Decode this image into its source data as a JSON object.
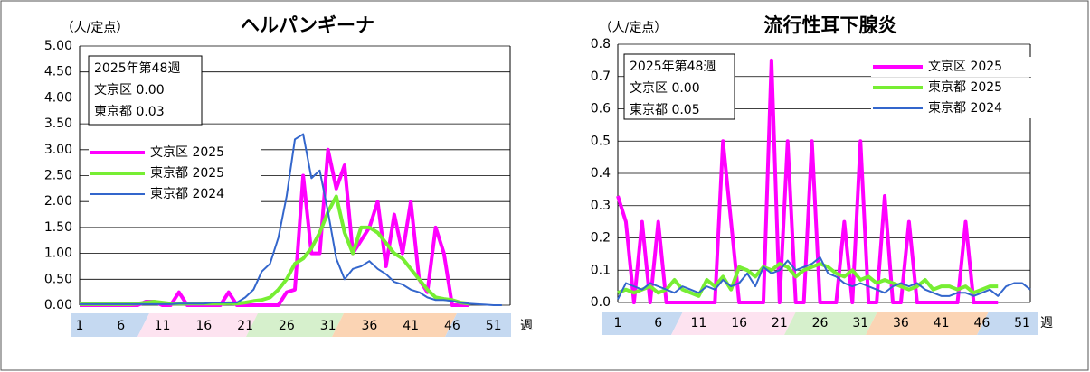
{
  "chart_data": [
    {
      "type": "line",
      "title": "ヘルパンギーナ",
      "y_label": "（人/定点）",
      "x_label": "週",
      "annotations": [
        "2025年第48週",
        "文京区  0.00",
        "東京都  0.03"
      ],
      "legend": "center-left",
      "grid": true,
      "x": [
        1,
        2,
        3,
        4,
        5,
        6,
        7,
        8,
        9,
        10,
        11,
        12,
        13,
        14,
        15,
        16,
        17,
        18,
        19,
        20,
        21,
        22,
        23,
        24,
        25,
        26,
        27,
        28,
        29,
        30,
        31,
        32,
        33,
        34,
        35,
        36,
        37,
        38,
        39,
        40,
        41,
        42,
        43,
        44,
        45,
        46,
        47,
        48,
        49,
        50,
        51,
        52
      ],
      "xlim": [
        1,
        53
      ],
      "xticks": [
        1,
        6,
        11,
        16,
        21,
        26,
        31,
        36,
        41,
        46,
        51
      ],
      "ylim": [
        0,
        5
      ],
      "yticks": [
        {
          "value": 0,
          "label": "0.00"
        },
        {
          "value": 0.5,
          "label": "0.50"
        },
        {
          "value": 1,
          "label": "1.00"
        },
        {
          "value": 1.5,
          "label": "1.50"
        },
        {
          "value": 2,
          "label": "2.00"
        },
        {
          "value": 2.5,
          "label": "2.50"
        },
        {
          "value": 3,
          "label": "3.00"
        },
        {
          "value": 3.5,
          "label": "3.50"
        },
        {
          "value": 4,
          "label": "4.00"
        },
        {
          "value": 4.5,
          "label": "4.50"
        },
        {
          "value": 5,
          "label": "5.00"
        }
      ],
      "series": [
        {
          "name": "文京区 2025",
          "color": "#ff00ff",
          "values": [
            0,
            0,
            0,
            0,
            0,
            0,
            0,
            0,
            0.07,
            0.07,
            0,
            0,
            0.25,
            0,
            0,
            0,
            0,
            0,
            0.25,
            0,
            0,
            0,
            0,
            0,
            0,
            0.25,
            0.3,
            2.5,
            1.0,
            1.0,
            3.0,
            2.25,
            2.7,
            1.0,
            1.25,
            1.5,
            2.0,
            0.75,
            1.75,
            1.0,
            2.0,
            0.5,
            0.25,
            1.5,
            1.0,
            0,
            0,
            0,
            null,
            null,
            null,
            null
          ]
        },
        {
          "name": "東京都 2025",
          "color": "#77ee33",
          "values": [
            0.02,
            0.02,
            0.02,
            0.02,
            0.02,
            0.02,
            0.02,
            0.03,
            0.05,
            0.07,
            0.05,
            0.03,
            0.03,
            0.03,
            0.03,
            0.03,
            0.03,
            0.03,
            0.04,
            0.03,
            0.05,
            0.08,
            0.1,
            0.15,
            0.3,
            0.5,
            0.8,
            0.9,
            1.1,
            1.4,
            1.8,
            2.1,
            1.4,
            1.0,
            1.5,
            1.5,
            1.4,
            1.2,
            1.0,
            0.9,
            0.7,
            0.5,
            0.3,
            0.15,
            0.12,
            0.1,
            0.05,
            0.03,
            null,
            null,
            null,
            null
          ]
        },
        {
          "name": "東京都 2024",
          "color": "#3366cc",
          "values": [
            0.02,
            0.02,
            0.02,
            0.02,
            0.02,
            0.02,
            0.02,
            0.02,
            0.02,
            0.02,
            0.02,
            0.02,
            0.03,
            0.03,
            0.03,
            0.03,
            0.05,
            0.05,
            0.05,
            0.05,
            0.15,
            0.3,
            0.65,
            0.8,
            1.3,
            2.1,
            3.2,
            3.3,
            2.45,
            2.6,
            1.8,
            0.9,
            0.5,
            0.7,
            0.75,
            0.85,
            0.7,
            0.6,
            0.45,
            0.4,
            0.3,
            0.25,
            0.15,
            0.1,
            0.1,
            0.08,
            0.05,
            0.03,
            0.02,
            0.01,
            0,
            0
          ]
        }
      ]
    },
    {
      "type": "line",
      "title": "流行性耳下腺炎",
      "y_label": "（人/定点）",
      "x_label": "週",
      "annotations": [
        "2025年第48週",
        "文京区  0.00",
        "東京都  0.05"
      ],
      "legend": "top-right",
      "grid": true,
      "x": [
        1,
        2,
        3,
        4,
        5,
        6,
        7,
        8,
        9,
        10,
        11,
        12,
        13,
        14,
        15,
        16,
        17,
        18,
        19,
        20,
        21,
        22,
        23,
        24,
        25,
        26,
        27,
        28,
        29,
        30,
        31,
        32,
        33,
        34,
        35,
        36,
        37,
        38,
        39,
        40,
        41,
        42,
        43,
        44,
        45,
        46,
        47,
        48,
        49,
        50,
        51,
        52
      ],
      "xlim": [
        1,
        52
      ],
      "xticks": [
        1,
        6,
        11,
        16,
        21,
        26,
        31,
        36,
        41,
        46,
        51
      ],
      "ylim": [
        0,
        0.8
      ],
      "yticks": [
        {
          "value": 0,
          "label": "0.0"
        },
        0.1,
        0.2,
        0.3,
        0.4,
        0.5,
        0.6,
        0.7,
        0.8
      ],
      "series": [
        {
          "name": "文京区 2025",
          "color": "#ff00ff",
          "values": [
            0.33,
            0.25,
            0,
            0.25,
            0,
            0.25,
            0,
            0,
            0,
            0,
            0,
            0,
            0,
            0.5,
            0.25,
            0,
            0,
            0,
            0,
            0.75,
            0,
            0.5,
            0,
            0,
            0.5,
            0,
            0,
            0,
            0.25,
            0,
            0.5,
            0,
            0,
            0.33,
            0,
            0,
            0.25,
            0,
            0,
            0,
            0,
            0,
            0,
            0.25,
            0,
            0,
            0,
            0,
            null,
            null,
            null,
            null
          ]
        },
        {
          "name": "東京都 2025",
          "color": "#77ee33",
          "values": [
            0.03,
            0.04,
            0.03,
            0.04,
            0.05,
            0.03,
            0.04,
            0.07,
            0.04,
            0.03,
            0.02,
            0.07,
            0.05,
            0.08,
            0.04,
            0.11,
            0.1,
            0.08,
            0.11,
            0.1,
            0.12,
            0.11,
            0.08,
            0.1,
            0.11,
            0.12,
            0.11,
            0.09,
            0.08,
            0.1,
            0.07,
            0.08,
            0.06,
            0.07,
            0.06,
            0.05,
            0.04,
            0.05,
            0.07,
            0.04,
            0.05,
            0.05,
            0.04,
            0.05,
            0.03,
            0.04,
            0.05,
            0.05,
            null,
            null,
            null,
            null
          ]
        },
        {
          "name": "東京都 2024",
          "color": "#3366cc",
          "values": [
            0.01,
            0.06,
            0.05,
            0.04,
            0.06,
            0.05,
            0.04,
            0.03,
            0.05,
            0.04,
            0.03,
            0.05,
            0.04,
            0.07,
            0.05,
            0.06,
            0.09,
            0.05,
            0.11,
            0.09,
            0.1,
            0.13,
            0.1,
            0.11,
            0.12,
            0.14,
            0.09,
            0.08,
            0.06,
            0.05,
            0.06,
            0.05,
            0.04,
            0.03,
            0.05,
            0.06,
            0.05,
            0.06,
            0.04,
            0.03,
            0.02,
            0.02,
            0.03,
            0.03,
            0.02,
            0.03,
            0.04,
            0.02,
            0.05,
            0.06,
            0.06,
            0.04
          ]
        }
      ]
    }
  ]
}
